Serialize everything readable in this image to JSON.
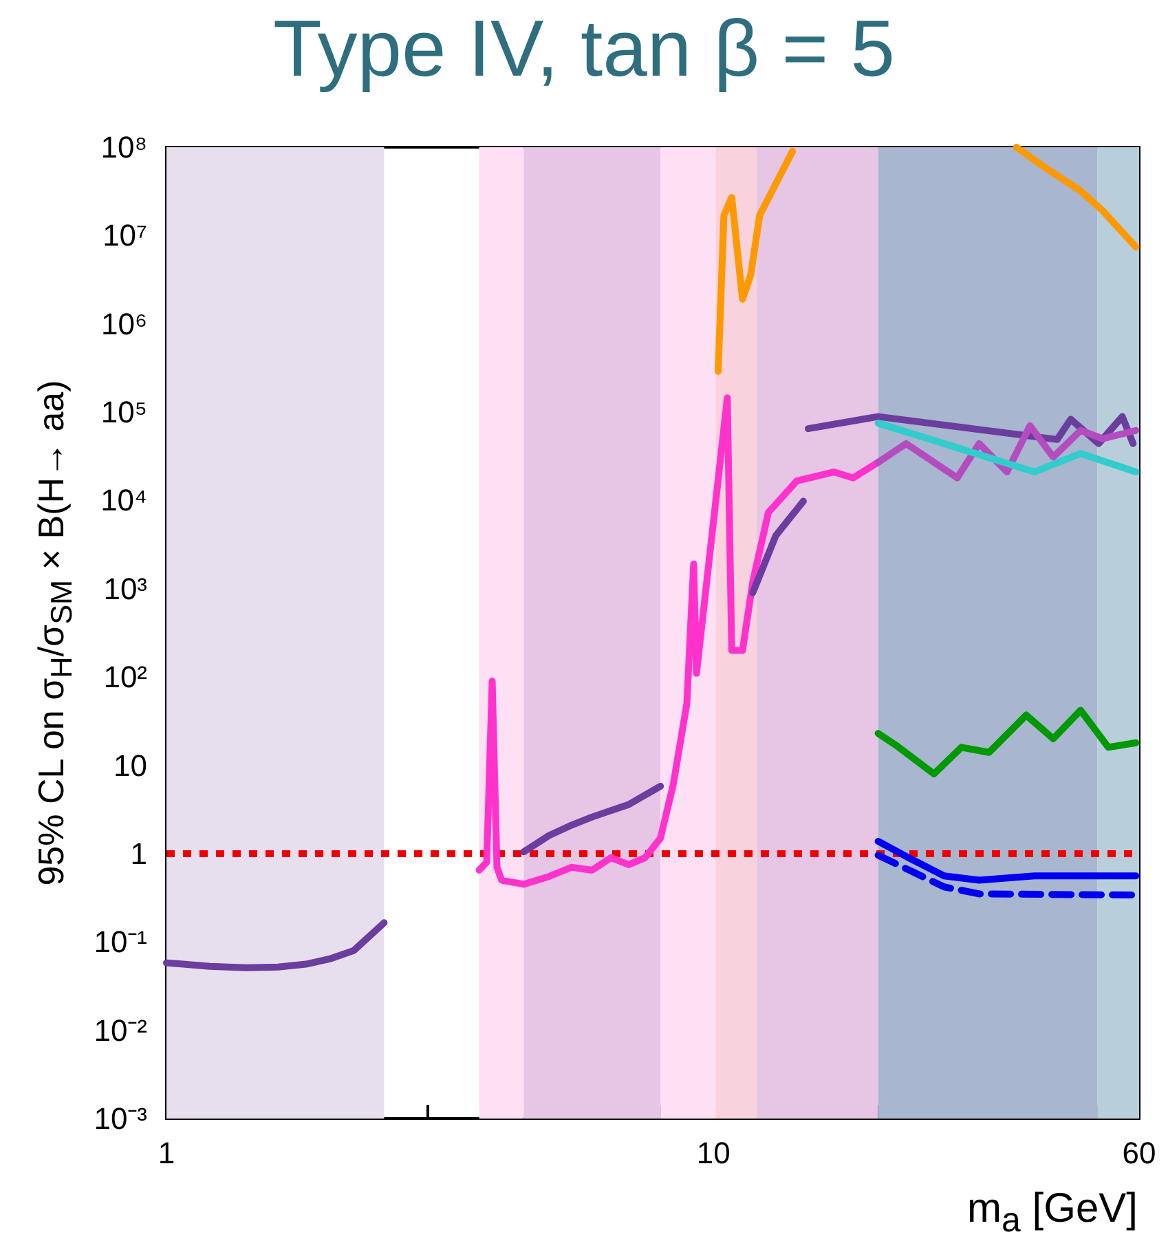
{
  "chart_data": {
    "type": "line",
    "title": "Type IV, tan β = 5",
    "xlabel": "m$_{a}$ [GeV]",
    "ylabel": "95% CL on σ$_{H}$/σ$_{SM}$ × B(H→ aa)",
    "log": "xy",
    "marker": "none",
    "line_style": "solid",
    "xlim": [
      1,
      60
    ],
    "ylim": [
      0.001,
      100000000
    ],
    "xticks": [
      1,
      {
        "value": 2,
        "label": null
      },
      {
        "value": 3,
        "label": null
      },
      {
        "value": 4,
        "label": null
      },
      {
        "value": 5,
        "label": null
      },
      {
        "value": 6,
        "label": null
      },
      {
        "value": 7,
        "label": null
      },
      {
        "value": 8,
        "label": null
      },
      {
        "value": 9,
        "label": null
      },
      10,
      {
        "value": 20,
        "label": null
      },
      {
        "value": 30,
        "label": null
      },
      {
        "value": 40,
        "label": null
      },
      {
        "value": 50,
        "label": null
      },
      60
    ],
    "yticks": [
      {
        "value": 0.001,
        "label": "10⁻³"
      },
      {
        "value": 0.01,
        "label": "10⁻²"
      },
      {
        "value": 0.1,
        "label": "10⁻¹"
      },
      1,
      10,
      {
        "value": 100,
        "label": "10²"
      },
      {
        "value": 1000,
        "label": "10³"
      },
      {
        "value": 10000,
        "label": "10⁴"
      },
      {
        "value": 100000,
        "label": "10⁵"
      },
      {
        "value": 1000000,
        "label": "10⁶"
      },
      {
        "value": 10000000,
        "label": "10⁷"
      },
      {
        "value": 100000000,
        "label": "10⁸"
      }
    ],
    "bands": [
      {
        "axis": "x",
        "from": 1,
        "to": 2.5,
        "color": "#e8dfee"
      },
      {
        "axis": "x",
        "from": 3.73,
        "to": 4.5,
        "color": "#fde0f4"
      },
      {
        "axis": "x",
        "from": 4.5,
        "to": 8,
        "color": "#e6c5e5"
      },
      {
        "axis": "x",
        "from": 8,
        "to": 12,
        "color": "#fde0f4"
      },
      {
        "axis": "x",
        "from": 10.1,
        "to": 12,
        "color": "#f8d2dc"
      },
      {
        "axis": "x",
        "from": 12,
        "to": 20,
        "color": "#e6c5e5"
      },
      {
        "axis": "x",
        "from": 20,
        "to": 50.3,
        "color": "#a8b6cf"
      },
      {
        "axis": "x",
        "from": 50.3,
        "to": 60,
        "color": "#b8ceda"
      }
    ],
    "ref_lines": [
      {
        "axis": "y",
        "value": 1,
        "color": "#ee0000",
        "line_style": "dotted"
      }
    ],
    "series": [
      {
        "color": "#6b3d9e",
        "x": [
          1,
          1.2,
          1.4,
          1.6,
          1.8,
          2,
          2.2,
          2.5
        ],
        "values": [
          0.058,
          0.053,
          0.051,
          0.052,
          0.056,
          0.065,
          0.08,
          0.165
        ]
      },
      {
        "color": "#6b3d9e",
        "x": [
          4.5,
          5,
          5.5,
          6,
          7,
          8
        ],
        "values": [
          1.05,
          1.6,
          2.1,
          2.6,
          3.6,
          5.8
        ]
      },
      {
        "color": "#ff33cc",
        "x": [
          3.73,
          3.85,
          3.94,
          4.02,
          4.1,
          4.5,
          5,
          5.5,
          6,
          6.5,
          7,
          7.5,
          8,
          8.44,
          8.94,
          9.2,
          9.31,
          10.6,
          10.8,
          11.3,
          11.8,
          12.6,
          14.2,
          16.6,
          18,
          20
        ],
        "values": [
          0.65,
          0.8,
          90,
          0.7,
          0.5,
          0.45,
          0.55,
          0.7,
          0.65,
          0.9,
          0.75,
          0.9,
          1.5,
          6,
          50,
          1900,
          110,
          145000,
          200,
          200,
          1200,
          7300,
          16600,
          21000,
          18000,
          27000
        ]
      },
      {
        "color": "#6b3d9e",
        "x": [
          11.8,
          13,
          14.6
        ],
        "values": [
          900,
          4000,
          9800
        ]
      },
      {
        "color": "#6b3d9e",
        "x": [
          14.9,
          20,
          42.5,
          45,
          50.6,
          55.9,
          58.5
        ],
        "values": [
          65000,
          89000,
          49000,
          83000,
          44000,
          89000,
          44000
        ]
      },
      {
        "color": "#b44cc0",
        "x": [
          20,
          22.5,
          27.9,
          30.6,
          34.4,
          37.9,
          41.8,
          46.9,
          51.5,
          59.2
        ],
        "values": [
          27000,
          44000,
          18000,
          44000,
          21000,
          70000,
          31000,
          62000,
          50000,
          62000
        ]
      },
      {
        "color": "#33cccc",
        "x": [
          20,
          26.4,
          38.6,
          46.9,
          59.2
        ],
        "values": [
          75000,
          44000,
          21000,
          34000,
          21000
        ]
      },
      {
        "color": "#ff9900",
        "x": [
          10.2,
          10.45,
          10.8,
          11.3,
          11.7,
          12.15,
          13.95
        ],
        "values": [
          290000,
          17000000,
          27000000,
          1900000,
          3600000,
          17000000,
          90000000
        ]
      },
      {
        "color": "#ff9900",
        "x": [
          35.8,
          40.2,
          46.9,
          51.5,
          59.2
        ],
        "values": [
          100000000,
          60000000,
          32000000,
          19000000,
          7400000
        ]
      },
      {
        "color": "#009900",
        "x": [
          20,
          21.7,
          25.3,
          28.4,
          31.9,
          37.3,
          41.8,
          46.9,
          52.7,
          59.2
        ],
        "values": [
          23,
          16.4,
          8,
          16,
          14,
          37,
          20,
          42,
          16,
          18
        ]
      },
      {
        "color": "#0000ee",
        "x": [
          20,
          22.5,
          26.4,
          30.6,
          38.6,
          59.2
        ],
        "values": [
          1.38,
          0.93,
          0.56,
          0.5,
          0.56,
          0.56
        ]
      },
      {
        "color": "#0000ee",
        "line_style": "dashed",
        "x": [
          20,
          26.4,
          30.6,
          59.2
        ],
        "values": [
          0.96,
          0.42,
          0.35,
          0.34
        ]
      }
    ]
  }
}
